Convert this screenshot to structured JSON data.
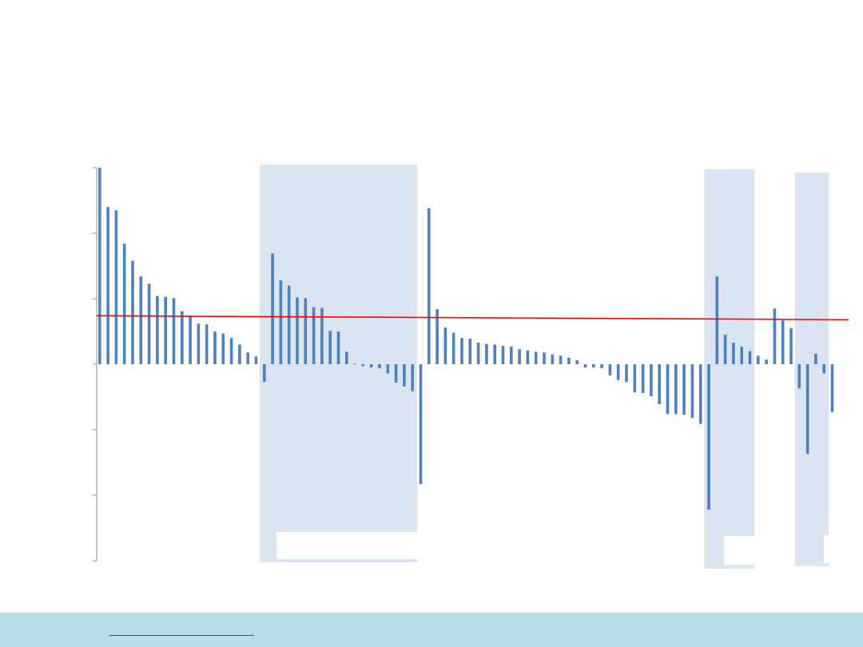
{
  "chart_data": {
    "type": "bar",
    "title": "",
    "xlabel": "",
    "ylabel": "",
    "ylim": [
      -3,
      3
    ],
    "y_ticks": [
      -3,
      -2,
      -1,
      0,
      1,
      2,
      3
    ],
    "tick_labels_visible": false,
    "grid": false,
    "legend": "none",
    "bar_color": "#4f81bd",
    "reference_line": {
      "color": "#ff0000",
      "y_start": 0.74,
      "y_end": 0.68
    },
    "highlight_color": "#dbe5f1",
    "highlight_groups": [
      {
        "from_bar": 20,
        "to_bar": 38
      },
      {
        "from_bar": 74,
        "to_bar": 79
      },
      {
        "from_bar": 85,
        "to_bar": 88
      }
    ],
    "values": [
      3.0,
      2.4,
      2.35,
      1.84,
      1.58,
      1.34,
      1.23,
      1.04,
      1.03,
      1.01,
      0.81,
      0.74,
      0.62,
      0.61,
      0.5,
      0.47,
      0.4,
      0.3,
      0.18,
      0.12,
      -0.27,
      1.69,
      1.28,
      1.2,
      1.02,
      1.01,
      0.87,
      0.86,
      0.51,
      0.5,
      0.19,
      0.01,
      -0.03,
      -0.05,
      -0.06,
      -0.14,
      -0.28,
      -0.34,
      -0.41,
      -1.83,
      2.38,
      0.84,
      0.56,
      0.48,
      0.4,
      0.39,
      0.33,
      0.31,
      0.3,
      0.28,
      0.27,
      0.23,
      0.21,
      0.19,
      0.18,
      0.15,
      0.13,
      0.1,
      0.06,
      -0.05,
      -0.05,
      -0.06,
      -0.17,
      -0.24,
      -0.27,
      -0.43,
      -0.44,
      -0.49,
      -0.61,
      -0.76,
      -0.76,
      -0.77,
      -0.82,
      -0.91,
      -2.22,
      1.34,
      0.45,
      0.33,
      0.27,
      0.2,
      0.13,
      0.07,
      0.85,
      0.67,
      0.55,
      -0.37,
      -1.37,
      0.16,
      -0.14,
      -0.73
    ]
  },
  "footer": {
    "background": "#b7dde8",
    "link_color": "#2a4fd6"
  }
}
